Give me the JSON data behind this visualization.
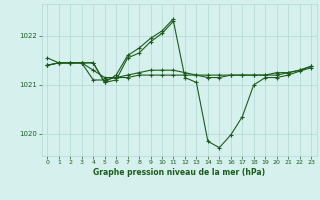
{
  "bg_color": "#d6f0ee",
  "grid_color": "#b0d8d4",
  "line_color": "#1a5c1a",
  "xlabel": "Graphe pression niveau de la mer (hPa)",
  "xlabel_color": "#1a5c1a",
  "ylim": [
    1019.55,
    1022.65
  ],
  "yticks": [
    1020,
    1021,
    1022
  ],
  "xlim": [
    -0.5,
    23.5
  ],
  "xticks": [
    0,
    1,
    2,
    3,
    4,
    5,
    6,
    7,
    8,
    9,
    10,
    11,
    12,
    13,
    14,
    15,
    16,
    17,
    18,
    19,
    20,
    21,
    22,
    23
  ],
  "series1": {
    "x": [
      0,
      1,
      2,
      3,
      4,
      5,
      6,
      7,
      8,
      9,
      10,
      11
    ],
    "y": [
      1021.55,
      1021.45,
      1021.45,
      1021.45,
      1021.45,
      1021.05,
      1021.2,
      1021.6,
      1021.75,
      1021.95,
      1022.1,
      1022.35
    ]
  },
  "series2": {
    "x": [
      0,
      1,
      2,
      3,
      4,
      5,
      6,
      7,
      8,
      9,
      10,
      11,
      12,
      13,
      14,
      15,
      16,
      17,
      18,
      19,
      20,
      21,
      22,
      23
    ],
    "y": [
      1021.4,
      1021.45,
      1021.45,
      1021.45,
      1021.45,
      1021.05,
      1021.1,
      1021.55,
      1021.65,
      1021.88,
      1022.05,
      1022.3,
      1021.15,
      1021.05,
      1019.85,
      1019.72,
      1019.98,
      1020.35,
      1021.0,
      1021.15,
      1021.15,
      1021.2,
      1021.28,
      1021.35
    ]
  },
  "series3": {
    "x": [
      0,
      1,
      2,
      3,
      4,
      5,
      6,
      7,
      8,
      9,
      10,
      11,
      12,
      13,
      14,
      15,
      16,
      17,
      18,
      19,
      20,
      21,
      22,
      23
    ],
    "y": [
      1021.4,
      1021.45,
      1021.45,
      1021.45,
      1021.1,
      1021.1,
      1021.15,
      1021.15,
      1021.2,
      1021.2,
      1021.2,
      1021.2,
      1021.2,
      1021.2,
      1021.2,
      1021.2,
      1021.2,
      1021.2,
      1021.2,
      1021.2,
      1021.2,
      1021.25,
      1021.3,
      1021.38
    ]
  },
  "series4": {
    "x": [
      0,
      1,
      2,
      3,
      4,
      5,
      6,
      7,
      8,
      9,
      10,
      11,
      12,
      13,
      14,
      15,
      16,
      17,
      18,
      19,
      20,
      21,
      22,
      23
    ],
    "y": [
      1021.4,
      1021.45,
      1021.45,
      1021.45,
      1021.3,
      1021.15,
      1021.15,
      1021.2,
      1021.25,
      1021.3,
      1021.3,
      1021.3,
      1021.25,
      1021.2,
      1021.15,
      1021.15,
      1021.2,
      1021.2,
      1021.2,
      1021.2,
      1021.25,
      1021.25,
      1021.3,
      1021.38
    ]
  }
}
